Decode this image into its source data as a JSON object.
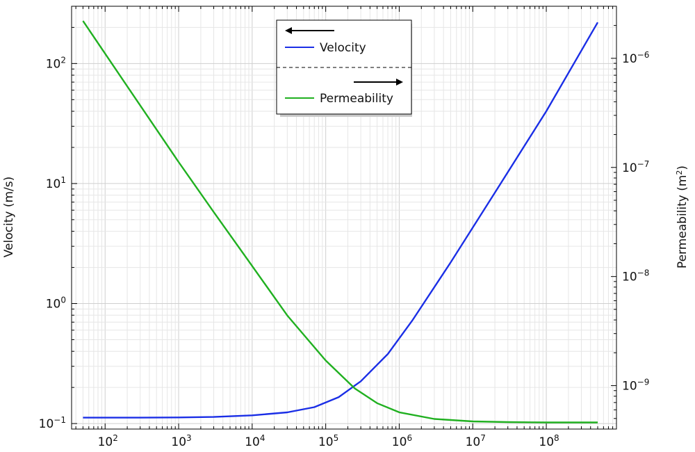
{
  "chart_data": {
    "type": "line",
    "x_scale": "log",
    "y_scale": "log",
    "y2_scale": "log",
    "grid": true,
    "legend_position": "top-center",
    "xlim": [
      35,
      900000000
    ],
    "ylim": [
      0.09,
      300
    ],
    "y2lim": [
      4e-10,
      3e-06
    ],
    "x_tick_values": [
      100,
      1000,
      10000,
      100000,
      1000000,
      10000000,
      100000000
    ],
    "x_tick_labels": [
      {
        "base": "10",
        "exp": "2"
      },
      {
        "base": "10",
        "exp": "3"
      },
      {
        "base": "10",
        "exp": "4"
      },
      {
        "base": "10",
        "exp": "5"
      },
      {
        "base": "10",
        "exp": "6"
      },
      {
        "base": "10",
        "exp": "7"
      },
      {
        "base": "10",
        "exp": "8"
      }
    ],
    "y_tick_values": [
      0.1,
      1,
      10,
      100
    ],
    "y_tick_labels": [
      {
        "base": "10",
        "exp": "−1"
      },
      {
        "base": "10",
        "exp": "0"
      },
      {
        "base": "10",
        "exp": "1"
      },
      {
        "base": "10",
        "exp": "2"
      }
    ],
    "y2_tick_values": [
      1e-09,
      1e-08,
      1e-07,
      1e-06
    ],
    "y2_tick_labels": [
      {
        "base": "10",
        "exp": "−9"
      },
      {
        "base": "10",
        "exp": "−8"
      },
      {
        "base": "10",
        "exp": "−7"
      },
      {
        "base": "10",
        "exp": "−6"
      }
    ],
    "ylabel": "Velocity (m/s)",
    "y2label": {
      "text": "Permeability (m",
      "sup": "2",
      "after": ")"
    },
    "series": [
      {
        "name": "Velocity",
        "axis": "left",
        "color": "#1a2ee6",
        "x": [
          50,
          300,
          1000,
          3000,
          10000,
          30000,
          70000,
          150000,
          300000,
          700000,
          1500000,
          5000000,
          20000000,
          100000000,
          500000000
        ],
        "y": [
          0.112,
          0.112,
          0.1125,
          0.1135,
          0.117,
          0.124,
          0.137,
          0.166,
          0.225,
          0.38,
          0.72,
          2.2,
          8.4,
          40,
          220
        ]
      },
      {
        "name": "Permeability",
        "axis": "right",
        "color": "#20b020",
        "x": [
          50,
          300,
          1000,
          3000,
          10000,
          30000,
          100000,
          250000,
          500000,
          1000000,
          3000000,
          10000000,
          30000000,
          100000000,
          500000000
        ],
        "y": [
          2.2e-06,
          3.7e-07,
          1.12e-07,
          3.9e-08,
          1.25e-08,
          4.4e-09,
          1.7e-09,
          9.4e-10,
          6.9e-10,
          5.7e-10,
          4.95e-10,
          4.7e-10,
          4.63e-10,
          4.6e-10,
          4.6e-10
        ]
      }
    ],
    "legend_arrows": [
      "left",
      "right"
    ]
  }
}
